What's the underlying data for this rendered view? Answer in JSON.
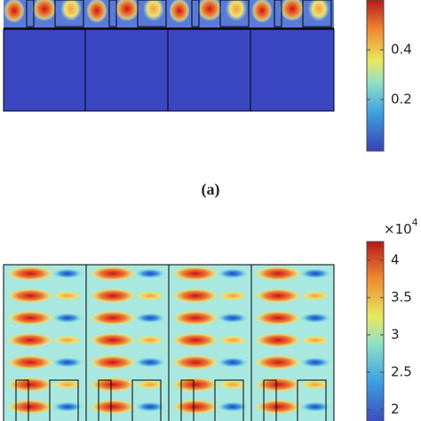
{
  "panel_a": {
    "caption": "(a)",
    "colorbar_ticks": [
      "0.4",
      "0.2"
    ]
  },
  "panel_b": {
    "multiplier": {
      "base": "×10",
      "exponent": "4"
    },
    "colorbar_ticks": [
      "4",
      "3.5",
      "3",
      "2.5",
      "2"
    ]
  }
}
